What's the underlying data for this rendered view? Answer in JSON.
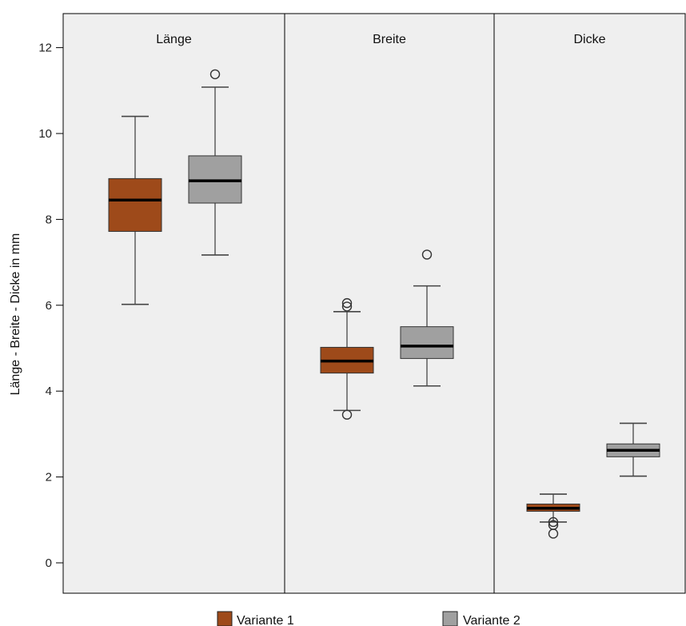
{
  "chart_data": {
    "type": "boxplot",
    "ylabel": "Länge - Breite - Dicke in mm",
    "ylim": [
      -0.7,
      12.8
    ],
    "yticks": [
      0,
      2,
      4,
      6,
      8,
      10,
      12
    ],
    "grid": false,
    "legend_position": "bottom",
    "colors": {
      "panel_bg": "#efefef",
      "variante1": "#9e4a1a",
      "variante2": "#a0a0a0"
    },
    "series": [
      {
        "name": "Variante 1",
        "color": "#9e4a1a"
      },
      {
        "name": "Variante 2",
        "color": "#a0a0a0"
      }
    ],
    "panels": [
      {
        "title": "Länge",
        "boxes": [
          {
            "series": "Variante 1",
            "min": 6.02,
            "q1": 7.72,
            "median": 8.45,
            "q3": 8.95,
            "max": 10.4,
            "outliers": []
          },
          {
            "series": "Variante 2",
            "min": 7.17,
            "q1": 8.38,
            "median": 8.9,
            "q3": 9.48,
            "max": 11.08,
            "outliers": [
              11.38
            ]
          }
        ]
      },
      {
        "title": "Breite",
        "boxes": [
          {
            "series": "Variante 1",
            "min": 3.55,
            "q1": 4.42,
            "median": 4.7,
            "q3": 5.02,
            "max": 5.85,
            "outliers": [
              5.97,
              6.05,
              3.45
            ]
          },
          {
            "series": "Variante 2",
            "min": 4.12,
            "q1": 4.76,
            "median": 5.05,
            "q3": 5.5,
            "max": 6.45,
            "outliers": [
              7.18
            ]
          }
        ]
      },
      {
        "title": "Dicke",
        "boxes": [
          {
            "series": "Variante 1",
            "min": 0.95,
            "q1": 1.2,
            "median": 1.27,
            "q3": 1.37,
            "max": 1.6,
            "outliers": [
              0.95,
              0.88,
              0.68
            ]
          },
          {
            "series": "Variante 2",
            "min": 2.02,
            "q1": 2.47,
            "median": 2.62,
            "q3": 2.77,
            "max": 3.25,
            "outliers": []
          }
        ]
      }
    ]
  }
}
